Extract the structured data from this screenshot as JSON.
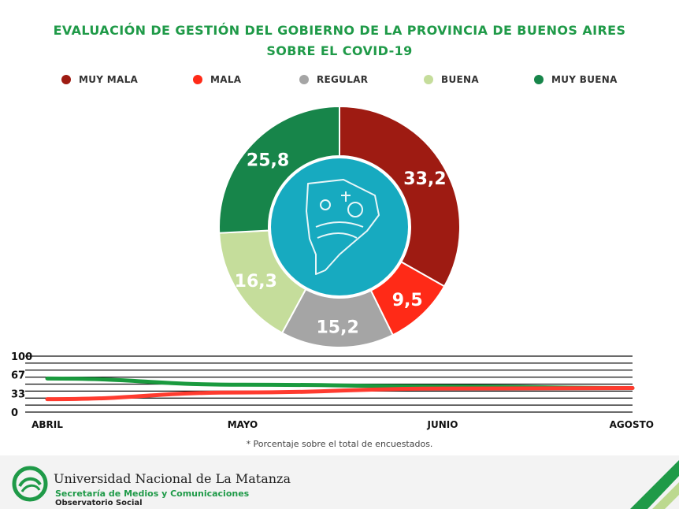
{
  "title_line1": "EVALUACIÓN DE GESTIÓN DEL GOBIERNO DE LA PROVINCIA DE BUENOS AIRES",
  "title_line2": "SOBRE EL COVID-19",
  "chart_data": [
    {
      "type": "pie",
      "style": "donut",
      "categories": [
        "MUY MALA",
        "MALA",
        "REGULAR",
        "BUENA",
        "MUY BUENA"
      ],
      "values": [
        33.2,
        9.5,
        15.2,
        16.3,
        25.8
      ],
      "value_labels": [
        "33,2",
        "9,5",
        "15,2",
        "16,3",
        "25,8"
      ],
      "colors": [
        "#9e1b12",
        "#ff2a17",
        "#a5a5a5",
        "#c5dd9b",
        "#17854a"
      ],
      "center_color": "#17aac0",
      "legend_position": "top"
    },
    {
      "type": "line",
      "categories": [
        "ABRIL",
        "MAYO",
        "JUNIO",
        "AGOSTO"
      ],
      "x_positions": [
        0,
        1,
        2,
        3
      ],
      "ylim": [
        0,
        100
      ],
      "yticks": [
        "100",
        "67",
        "33",
        "0"
      ],
      "grid": true,
      "series": [
        {
          "color": "#1a9a3e",
          "values": [
            60,
            49,
            46,
            43
          ]
        },
        {
          "color": "#ff3b2f",
          "values": [
            23,
            35,
            42,
            43
          ]
        }
      ]
    }
  ],
  "footnote": "* Porcentaje sobre el total de encuestados.",
  "footer": {
    "university": "Universidad Nacional de La Matanza",
    "secretariat": "Secretaría de Medios y Comunicaciones",
    "observatory": "Observatorio Social"
  },
  "icons": {
    "logo": "unlam-logo-icon",
    "map": "buenos-aires-province-map-icon"
  }
}
